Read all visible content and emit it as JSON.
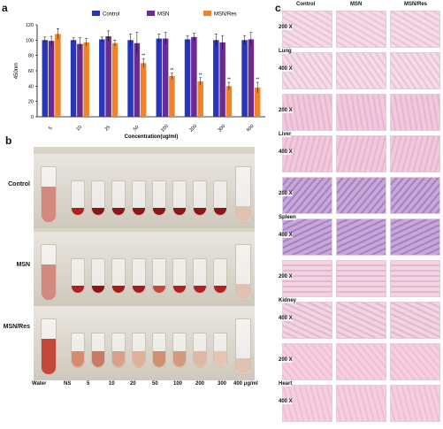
{
  "panels": {
    "a": "a",
    "b": "b",
    "c": "c"
  },
  "chart_data": {
    "type": "bar",
    "categories": [
      "5",
      "10",
      "25",
      "50",
      "100",
      "200",
      "300",
      "400"
    ],
    "series": [
      {
        "name": "Control",
        "values": [
          100,
          100,
          101,
          100,
          102,
          101,
          100,
          100
        ],
        "errors": [
          4,
          3,
          3,
          8,
          6,
          5,
          8,
          6
        ],
        "color": "#2a36b8"
      },
      {
        "name": "MSN",
        "values": [
          99,
          95,
          105,
          96,
          102,
          104,
          97,
          101
        ],
        "errors": [
          6,
          8,
          7,
          14,
          8,
          5,
          9,
          9
        ],
        "color": "#6b2c91"
      },
      {
        "name": "MSN/Res",
        "values": [
          108,
          97,
          96,
          70,
          53,
          46,
          40,
          38
        ],
        "errors": [
          7,
          5,
          4,
          6,
          4,
          5,
          5,
          7
        ],
        "color": "#f0822a"
      }
    ],
    "significance": [
      "",
      "",
      "",
      "**",
      "**",
      "**",
      "**",
      "**"
    ],
    "xlabel": "Concentration(ug/ml)",
    "ylabel": "450nm",
    "ylim": [
      0,
      120
    ],
    "yticks": [
      "0",
      "20",
      "40",
      "60",
      "80",
      "100",
      "120"
    ],
    "legend": "top"
  },
  "photo_b": {
    "rows": [
      "Control",
      "MSN",
      "MSN/Res"
    ],
    "columns": [
      "Water",
      "NS",
      "5",
      "10",
      "20",
      "50",
      "100",
      "200",
      "300",
      "400 μg/ml"
    ]
  },
  "histology_c": {
    "columns": [
      "Control",
      "MSN",
      "MSN/Res"
    ],
    "organs": [
      "Lung",
      "Liver",
      "Spleen",
      "Kidney",
      "Heart"
    ],
    "magnifications": [
      "200 X",
      "400 X"
    ]
  }
}
